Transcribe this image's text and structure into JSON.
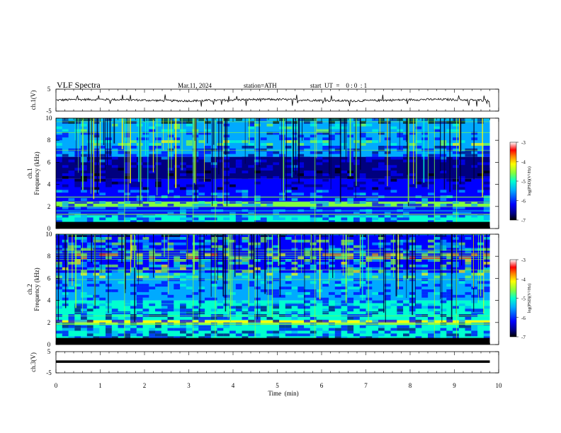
{
  "header": {
    "title": "VLF  Spectra",
    "date": "Mar.11, 2024",
    "station": "station=ATH",
    "start_ut": "start  UT  =    0 : 0  : 1"
  },
  "chart_data": [
    {
      "type": "line",
      "name": "ch1-waveform",
      "ylabel": "ch.1(V)",
      "ylim": [
        -5,
        5
      ],
      "yticks": [
        "5",
        "-5"
      ],
      "xlim": [
        0,
        10
      ],
      "x_end": 9.8,
      "baseline": 0,
      "description_values": "noisy trace around 0 V with spikes up to ~+2 V and down to ~-2 V"
    },
    {
      "type": "heatmap",
      "name": "ch1-spectrogram",
      "ylabel": "ch.1\nFrequency (kHz)",
      "ylabel_line1": "ch.1",
      "ylabel_line2": "Frequency  (kHz)",
      "ylim": [
        0,
        10
      ],
      "yticks": [
        "0",
        "2",
        "4",
        "6",
        "8",
        "10"
      ],
      "xlim": [
        0,
        10
      ],
      "x_end": 9.8,
      "colorbar": {
        "label": "log(PSD)(V²/Hz)",
        "range": [
          -7,
          -3
        ],
        "ticks": [
          "-3",
          "-4",
          "-5",
          "-6",
          "-7"
        ]
      },
      "bands": [
        {
          "f": [
            0,
            0.6
          ],
          "level": -7.0
        },
        {
          "f": [
            0.6,
            1.2
          ],
          "level": -5.3
        },
        {
          "f": [
            1.2,
            2.0
          ],
          "level": -6.0
        },
        {
          "f": [
            2.0,
            2.4
          ],
          "level": -4.9
        },
        {
          "f": [
            2.4,
            4.5
          ],
          "level": -6.3
        },
        {
          "f": [
            4.5,
            6.5
          ],
          "level": -6.6
        },
        {
          "f": [
            6.5,
            10
          ],
          "level": -5.8
        }
      ]
    },
    {
      "type": "heatmap",
      "name": "ch2-spectrogram",
      "ylabel_line1": "ch.2",
      "ylabel_line2": "Frequency  (kHz)",
      "ylim": [
        0,
        10
      ],
      "yticks": [
        "0",
        "2",
        "4",
        "6",
        "8",
        "10"
      ],
      "xlim": [
        0,
        10
      ],
      "x_end": 9.8,
      "colorbar": {
        "label": "log(PSD)(V²/Hz)",
        "range": [
          -7,
          -3
        ],
        "ticks": [
          "-3",
          "-4",
          "-5",
          "-6",
          "-7"
        ]
      },
      "bands": [
        {
          "f": [
            0,
            0.3
          ],
          "level": -7.0
        },
        {
          "f": [
            0.3,
            1.8
          ],
          "level": -5.2
        },
        {
          "f": [
            1.8,
            2.2
          ],
          "level": -4.1
        },
        {
          "f": [
            2.2,
            4.0
          ],
          "level": -5.0
        },
        {
          "f": [
            4.0,
            6.5
          ],
          "level": -5.8
        },
        {
          "f": [
            6.5,
            10
          ],
          "level": -6.2
        }
      ]
    },
    {
      "type": "line",
      "name": "ch3-waveform",
      "ylabel": "ch.3(V)",
      "ylim": [
        -5,
        5
      ],
      "yticks": [
        "5",
        "-5"
      ],
      "xlim": [
        0,
        10
      ],
      "x_end": 9.8,
      "baseline": 0.3
    }
  ],
  "xaxis": {
    "label": "Time  (min)",
    "ticks": [
      "0",
      "1",
      "2",
      "3",
      "4",
      "5",
      "6",
      "7",
      "8",
      "9",
      "10"
    ]
  },
  "colors": {
    "cmap": [
      "#00007f",
      "#0000ff",
      "#00aaff",
      "#00ffd0",
      "#80ff40",
      "#ffff00",
      "#ff7f00",
      "#ff0000",
      "#ffffff"
    ]
  }
}
